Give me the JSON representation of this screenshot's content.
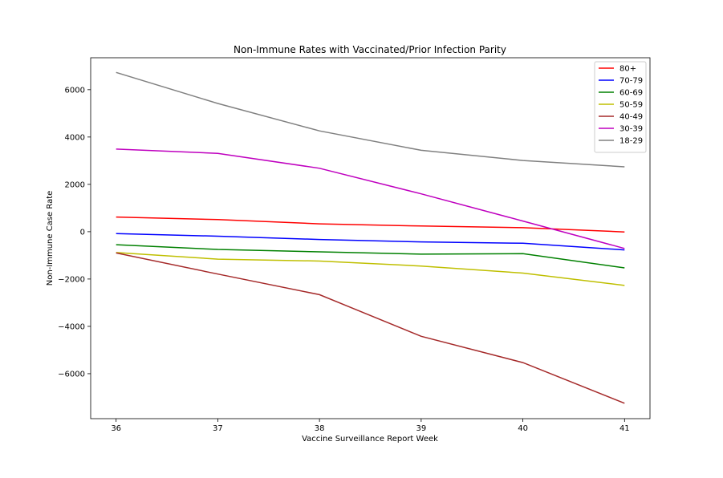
{
  "chart_data": {
    "type": "line",
    "title": "Non-Immune Rates with Vaccinated/Prior Infection Parity",
    "xlabel": "Vaccine Surveillance Report Week",
    "ylabel": "Non-Immune Case Rate",
    "x": [
      36,
      37,
      38,
      39,
      40,
      41
    ],
    "x_ticks": [
      "36",
      "37",
      "38",
      "39",
      "40",
      "41"
    ],
    "xlim": [
      35.75,
      41.25
    ],
    "ylim": [
      -7900,
      7350
    ],
    "y_ticks": [
      -6000,
      -4000,
      -2000,
      0,
      2000,
      4000,
      6000
    ],
    "y_tick_labels": [
      "−6000",
      "−4000",
      "−2000",
      "0",
      "2000",
      "4000",
      "6000"
    ],
    "grid": false,
    "legend_position": "top-right",
    "series": [
      {
        "name": "80+",
        "color": "#ff0000",
        "values": [
          620,
          510,
          330,
          240,
          170,
          -10
        ]
      },
      {
        "name": "70-79",
        "color": "#0000ff",
        "values": [
          -80,
          -190,
          -330,
          -430,
          -490,
          -770
        ]
      },
      {
        "name": "60-69",
        "color": "#008000",
        "values": [
          -550,
          -750,
          -850,
          -950,
          -930,
          -1530
        ]
      },
      {
        "name": "50-59",
        "color": "#bfbf00",
        "values": [
          -880,
          -1160,
          -1240,
          -1450,
          -1750,
          -2270
        ]
      },
      {
        "name": "40-49",
        "color": "#a52a2a",
        "values": [
          -900,
          -1790,
          -2660,
          -4420,
          -5530,
          -7250
        ]
      },
      {
        "name": "30-39",
        "color": "#bf00bf",
        "values": [
          3490,
          3310,
          2680,
          1600,
          450,
          -710
        ]
      },
      {
        "name": "18-29",
        "color": "#808080",
        "values": [
          6730,
          5420,
          4260,
          3440,
          3010,
          2740
        ]
      }
    ]
  }
}
